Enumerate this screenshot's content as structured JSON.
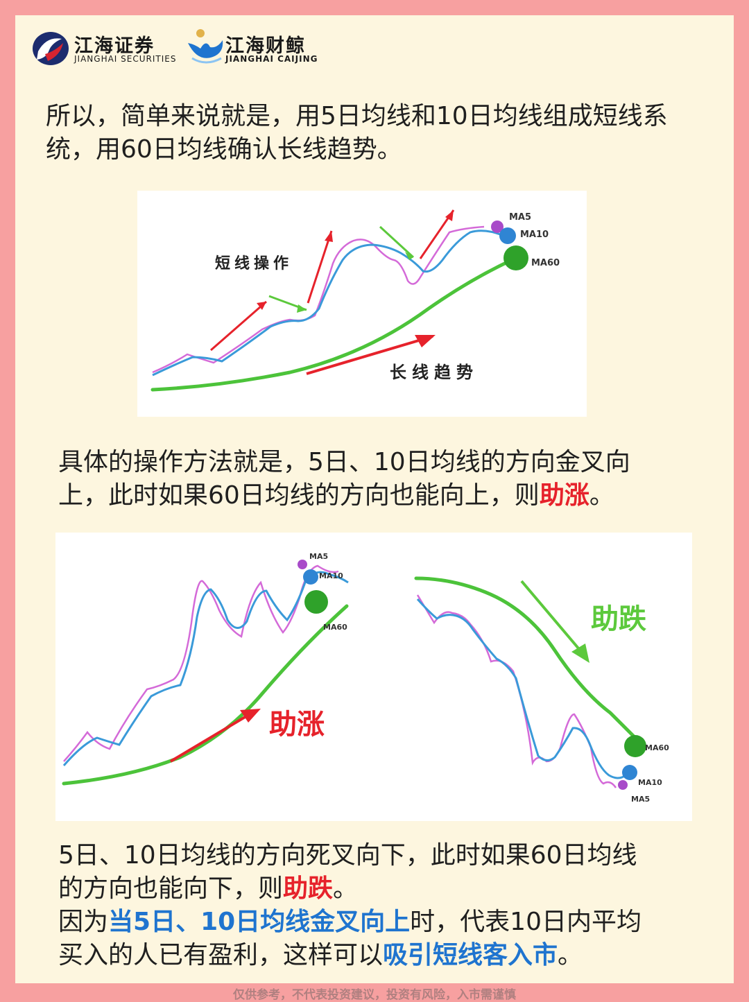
{
  "header": {
    "brand1_cn": "江海证券",
    "brand1_en": "JIANGHAI SECURITIES",
    "brand2_cn": "江海财鲸",
    "brand2_en": "JIANGHAI CAIJING"
  },
  "para1": "所以，简单来说就是，用5日均线和10日均线组成短线系统，用60日均线确认长线趋势。",
  "chart1": {
    "label_short": "短线操作",
    "label_long": "长线趋势",
    "ma5": "MA5",
    "ma10": "MA10",
    "ma60": "MA60"
  },
  "para2": {
    "line1": "具体的操作方法就是，5日、10日均线的方向金叉向",
    "line2_pre": "上，此时如果60日均线的方向也能向上，则",
    "line2_red": "助涨",
    "line2_post": "。"
  },
  "chart2": {
    "label_up": "助涨",
    "label_down": "助跌",
    "ma5": "MA5",
    "ma10": "MA10",
    "ma60": "MA60"
  },
  "para3": {
    "line1": "5日、10日均线的方向死叉向下，此时如果60日均线",
    "line2_pre": "的方向也能向下，则",
    "line2_red": "助跌",
    "line2_post": "。",
    "line3_pre": "因为",
    "line3_blue": "当5日、10日均线金叉向上",
    "line3_post": "时，代表10日内平均",
    "line4_pre": "买入的人已有盈利，这样可以",
    "line4_blue": "吸引短线客入市",
    "line4_post": "。"
  },
  "footer": "仅供参考，不代表投资建议，投资有风险，入市需谨慎",
  "colors": {
    "frame": "#f7a0a0",
    "card": "#fdf6df",
    "ma5": "#d46ad8",
    "ma10": "#3a9ad9",
    "ma60": "#4cc33a",
    "arrow_red": "#e6222b",
    "arrow_green": "#5cc93c"
  }
}
